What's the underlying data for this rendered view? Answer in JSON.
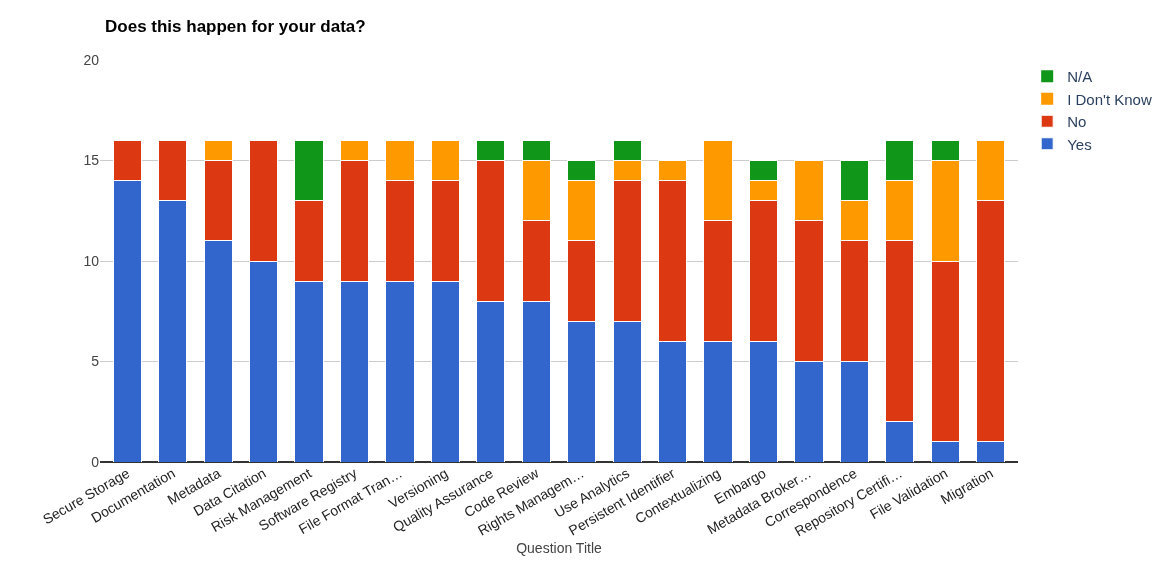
{
  "chart_data": {
    "type": "bar",
    "stacked": true,
    "title": "Does this happen for your data?",
    "xlabel": "Question Title",
    "categories": [
      "Secure Storage",
      "Documentation",
      "Metadata",
      "Data Citation",
      "Risk Management",
      "Software Registry",
      "File Format Tran…",
      "Versioning",
      "Quality Assurance",
      "Code Review",
      "Rights Managem…",
      "Use Analytics",
      "Persistent Identifier",
      "Contextualizing",
      "Embargo",
      "Metadata Broker…",
      "Correspondence",
      "Repository Certifi…",
      "File Validation",
      "Migration"
    ],
    "series": [
      {
        "name": "Yes",
        "color": "#3366cc",
        "values": [
          14,
          13,
          11,
          10,
          9,
          9,
          9,
          9,
          8,
          8,
          7,
          7,
          6,
          6,
          6,
          5,
          5,
          2,
          1,
          1
        ]
      },
      {
        "name": "No",
        "color": "#dc3912",
        "values": [
          2,
          3,
          4,
          6,
          4,
          6,
          5,
          5,
          7,
          4,
          4,
          7,
          8,
          6,
          7,
          7,
          6,
          9,
          9,
          12
        ]
      },
      {
        "name": "I Don't Know",
        "color": "#ff9900",
        "values": [
          0,
          0,
          1,
          0,
          0,
          1,
          2,
          2,
          0,
          3,
          3,
          1,
          1,
          4,
          1,
          3,
          2,
          3,
          5,
          3
        ]
      },
      {
        "name": "N/A",
        "color": "#109618",
        "values": [
          0,
          0,
          0,
          0,
          3,
          0,
          0,
          0,
          1,
          1,
          1,
          1,
          0,
          0,
          1,
          0,
          2,
          2,
          1,
          0
        ]
      }
    ],
    "ylim": [
      0,
      20
    ],
    "yticks": [
      0,
      5,
      10,
      15,
      20
    ],
    "grid": "y",
    "legend": "right"
  }
}
